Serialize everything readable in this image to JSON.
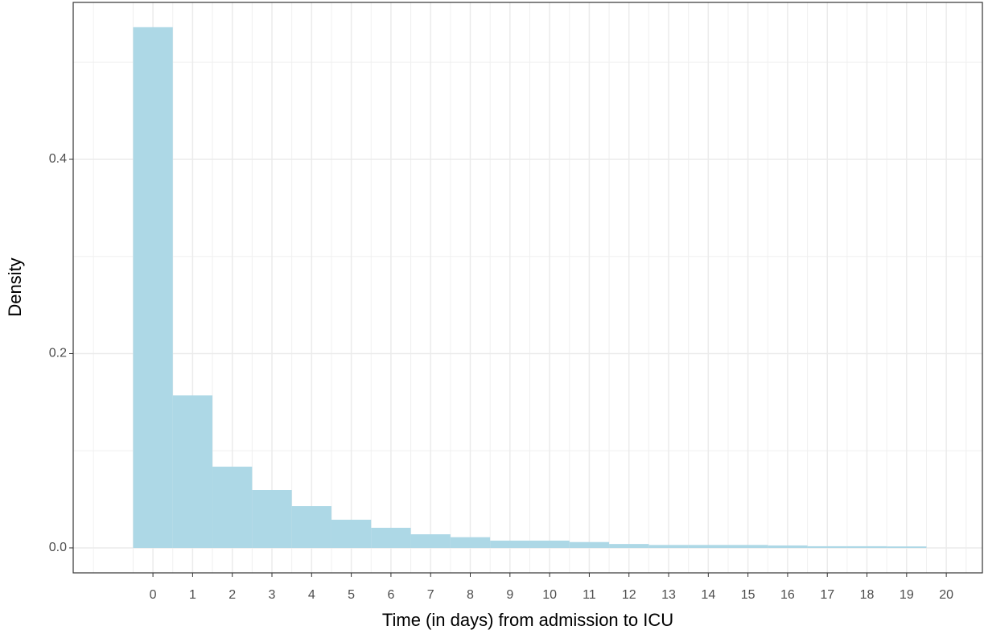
{
  "chart_data": {
    "type": "histogram",
    "x_label": "Time (in days) from admission to ICU",
    "y_label": "Density",
    "bins": [
      -0.5,
      0.5,
      1.5,
      2.5,
      3.5,
      4.5,
      5.5,
      6.5,
      7.5,
      8.5,
      9.5,
      10.5,
      11.5,
      12.5,
      13.5,
      14.5,
      15.5,
      16.5,
      17.5,
      18.5,
      19.5
    ],
    "values": [
      0.536,
      0.157,
      0.0836,
      0.0596,
      0.043,
      0.029,
      0.0207,
      0.014,
      0.011,
      0.0075,
      0.0075,
      0.006,
      0.004,
      0.003,
      0.003,
      0.003,
      0.0025,
      0.0017,
      0.0017,
      0.0015
    ],
    "color": "#add8e6",
    "xlim": [
      -2.01,
      20.91
    ],
    "ylim": [
      -0.0257,
      0.5615
    ],
    "xticks": [
      0,
      1,
      2,
      3,
      4,
      5,
      6,
      7,
      8,
      9,
      10,
      11,
      12,
      13,
      14,
      15,
      16,
      17,
      18,
      19,
      20
    ],
    "yticks": [
      {
        "value": 0,
        "label": "0.0"
      },
      0.2,
      0.4
    ],
    "x_minor_gridlines": [
      -1.5,
      -0.5,
      0.5,
      1.5,
      2.5,
      3.5,
      4.5,
      5.5,
      6.5,
      7.5,
      8.5,
      9.5,
      10.5,
      11.5,
      12.5,
      13.5,
      14.5,
      15.5,
      16.5,
      17.5,
      18.5,
      19.5,
      20.5
    ],
    "y_minor_gridlines": [
      0.1,
      0.3,
      0.5
    ],
    "grid": true
  }
}
